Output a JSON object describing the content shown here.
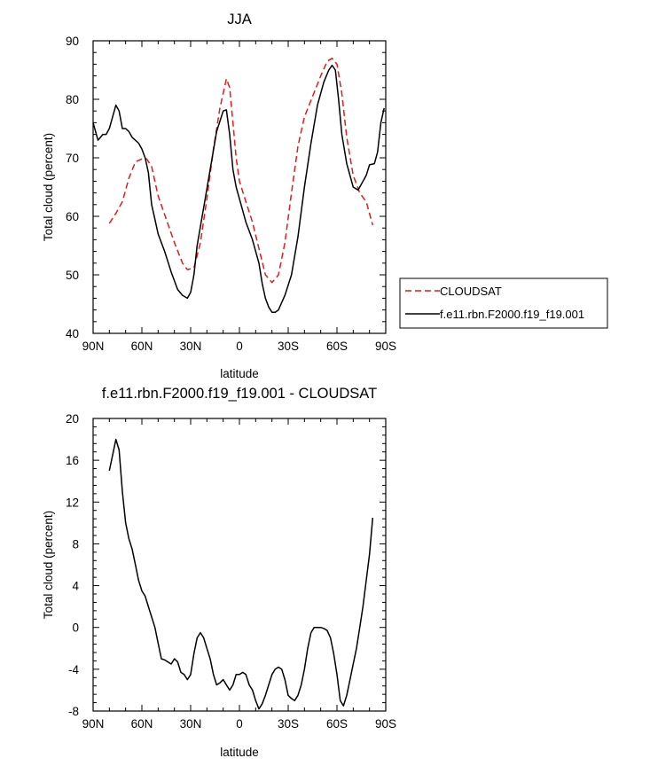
{
  "chart_data": [
    {
      "type": "line",
      "title": "JJA",
      "xlabel": "latitude",
      "ylabel": "Total cloud (percent)",
      "xlim": [
        90,
        -90
      ],
      "ylim": [
        40,
        90
      ],
      "xticks": [
        90,
        60,
        30,
        0,
        -30,
        -60,
        -90
      ],
      "xtick_labels": [
        "90N",
        "60N",
        "30N",
        "0",
        "30S",
        "60S",
        "90S"
      ],
      "yticks": [
        40,
        50,
        60,
        70,
        80,
        90
      ],
      "ytick_labels": [
        "40",
        "50",
        "60",
        "70",
        "80",
        "90"
      ],
      "grid": false,
      "legend_position": "right",
      "series": [
        {
          "name": "CLOUDSAT",
          "color": "#e41a1c",
          "dash": "dashed",
          "x": [
            80,
            76,
            72,
            68,
            64,
            60,
            57,
            54,
            50,
            45,
            40,
            35,
            32,
            28,
            24,
            20,
            16,
            12,
            8,
            6,
            4,
            2,
            0,
            -4,
            -8,
            -12,
            -16,
            -20,
            -24,
            -28,
            -32,
            -36,
            -40,
            -45,
            -50,
            -54,
            -57,
            -60,
            -63,
            -66,
            -70,
            -74,
            -78,
            -82
          ],
          "values": [
            58.8,
            60.5,
            62.5,
            66.5,
            69.3,
            69.8,
            69.8,
            68.5,
            63.5,
            59.5,
            55.5,
            52.0,
            50.9,
            51.2,
            55.5,
            63.0,
            71.5,
            78.5,
            83.5,
            82.0,
            76.0,
            70.0,
            66.0,
            62.5,
            59.0,
            54.5,
            50.0,
            48.7,
            50.0,
            55.5,
            64.0,
            72.0,
            77.0,
            80.5,
            84.0,
            86.5,
            87.0,
            86.0,
            81.0,
            73.5,
            67.0,
            64.0,
            62.5,
            58.5
          ]
        },
        {
          "name": "f.e11.rbn.F2000.f19_f19.001",
          "color": "#000000",
          "dash": "solid",
          "x": [
            90,
            87,
            84,
            82,
            80,
            78,
            76,
            74,
            72,
            70,
            68,
            66,
            64,
            62,
            60,
            58,
            56,
            54,
            52,
            50,
            46,
            42,
            38,
            35,
            32,
            30,
            28,
            26,
            22,
            18,
            14,
            10,
            8,
            6,
            4,
            2,
            0,
            -4,
            -8,
            -12,
            -14,
            -16,
            -18,
            -20,
            -22,
            -24,
            -28,
            -32,
            -36,
            -40,
            -44,
            -48,
            -52,
            -55,
            -57,
            -59,
            -61,
            -63,
            -66,
            -70,
            -73,
            -75,
            -78,
            -80,
            -83,
            -85,
            -87,
            -89
          ],
          "values": [
            76.0,
            73.0,
            74.0,
            74.0,
            75.0,
            77.0,
            79.0,
            78.0,
            75.0,
            75.0,
            74.5,
            73.5,
            73.0,
            72.5,
            71.5,
            70.0,
            67.5,
            62.0,
            59.5,
            57.0,
            54.0,
            50.5,
            47.5,
            46.5,
            46.0,
            47.0,
            50.0,
            55.0,
            61.5,
            68.0,
            74.5,
            78.0,
            78.2,
            74.0,
            68.0,
            65.0,
            63.0,
            59.0,
            56.0,
            52.0,
            48.5,
            46.0,
            44.5,
            43.6,
            43.6,
            44.0,
            46.5,
            50.0,
            56.5,
            65.0,
            72.5,
            79.0,
            83.0,
            85.0,
            85.8,
            85.0,
            80.0,
            74.0,
            69.0,
            65.0,
            64.5,
            65.5,
            67.0,
            68.8,
            69.0,
            71.0,
            76.0,
            78.5
          ]
        }
      ]
    },
    {
      "type": "line",
      "title": "f.e11.rbn.F2000.f19_f19.001 - CLOUDSAT",
      "xlabel": "latitude",
      "ylabel": "Total cloud (percent)",
      "xlim": [
        90,
        -90
      ],
      "ylim": [
        -8,
        20
      ],
      "xticks": [
        90,
        60,
        30,
        0,
        -30,
        -60,
        -90
      ],
      "xtick_labels": [
        "90N",
        "60N",
        "30N",
        "0",
        "30S",
        "60S",
        "90S"
      ],
      "yticks": [
        -8,
        -4,
        0,
        4,
        8,
        12,
        16,
        20
      ],
      "ytick_labels": [
        "-8",
        "-4",
        "0",
        "4",
        "8",
        "12",
        "16",
        "20"
      ],
      "grid": false,
      "series": [
        {
          "color": "#000000",
          "dash": "solid",
          "x": [
            80,
            78,
            76,
            74,
            72,
            70,
            68,
            66,
            64,
            62,
            60,
            58,
            56,
            54,
            52,
            50,
            48,
            46,
            44,
            42,
            40,
            38,
            36,
            34,
            32,
            30,
            28,
            26,
            24,
            22,
            20,
            18,
            16,
            14,
            12,
            10,
            8,
            6,
            4,
            2,
            0,
            -2,
            -4,
            -6,
            -8,
            -10,
            -12,
            -14,
            -16,
            -18,
            -20,
            -22,
            -24,
            -26,
            -28,
            -30,
            -32,
            -34,
            -36,
            -38,
            -40,
            -42,
            -44,
            -46,
            -48,
            -50,
            -52,
            -54,
            -56,
            -58,
            -60,
            -62,
            -64,
            -66,
            -68,
            -70,
            -72,
            -74,
            -76,
            -78,
            -80,
            -82
          ],
          "values": [
            15.0,
            16.5,
            18.0,
            17.0,
            13.0,
            10.0,
            8.5,
            7.5,
            6.0,
            4.5,
            3.5,
            3.0,
            2.0,
            1.0,
            0.0,
            -1.5,
            -3.0,
            -3.1,
            -3.3,
            -3.5,
            -3.0,
            -3.3,
            -4.3,
            -4.5,
            -5.0,
            -4.5,
            -2.5,
            -1.0,
            -0.5,
            -1.0,
            -2.0,
            -3.0,
            -4.5,
            -5.5,
            -5.3,
            -5.0,
            -5.5,
            -6.0,
            -5.5,
            -4.5,
            -4.5,
            -4.3,
            -4.5,
            -5.5,
            -6.0,
            -7.0,
            -7.8,
            -7.3,
            -6.5,
            -5.5,
            -4.5,
            -4.0,
            -3.8,
            -4.0,
            -5.0,
            -6.5,
            -6.8,
            -7.0,
            -6.5,
            -5.5,
            -4.0,
            -2.0,
            -0.5,
            0.0,
            0.0,
            0.0,
            -0.1,
            -0.3,
            -1.0,
            -2.5,
            -4.5,
            -7.0,
            -7.5,
            -6.5,
            -5.0,
            -3.5,
            -2.0,
            0.0,
            2.0,
            4.5,
            7.0,
            10.5
          ]
        }
      ]
    }
  ]
}
